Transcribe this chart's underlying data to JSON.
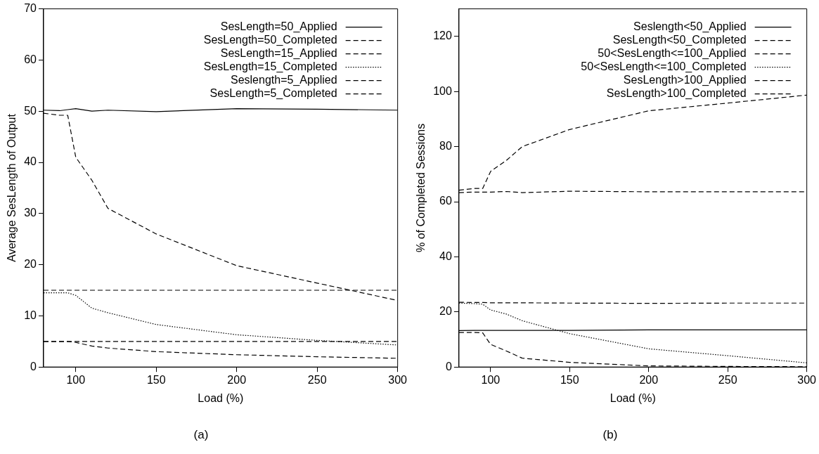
{
  "chart_data": [
    {
      "type": "line",
      "title": "(a)",
      "xlabel": "Load (%)",
      "ylabel": "Average SesLength of Output",
      "x": [
        80,
        90,
        95,
        100,
        110,
        120,
        150,
        200,
        250,
        300
      ],
      "xlim": [
        80,
        300
      ],
      "xticks": [
        100,
        150,
        200,
        250,
        300
      ],
      "ylim": [
        0,
        70
      ],
      "yticks": [
        0,
        10,
        20,
        30,
        40,
        50,
        60,
        70
      ],
      "legend": "top right",
      "grid": false,
      "marker": "none",
      "series": [
        {
          "name": "SesLength=50_Applied",
          "color": "#000000",
          "line_style": "solid",
          "values": [
            50.2,
            50.1,
            50.3,
            50.5,
            50.0,
            50.2,
            49.9,
            50.5,
            50.4,
            50.2
          ]
        },
        {
          "name": "SesLength=50_Completed",
          "color": "#000000",
          "line_style": "dashed",
          "values": [
            49.6,
            49.2,
            49.2,
            41,
            36.5,
            31,
            26,
            19.8,
            16.4,
            13
          ]
        },
        {
          "name": "SesLength=15_Applied",
          "color": "#000000",
          "line_style": "dashed",
          "values": [
            15,
            15,
            15,
            15,
            15,
            15,
            15,
            15,
            15,
            15
          ]
        },
        {
          "name": "SesLength=15_Completed",
          "color": "#000000",
          "line_style": "dotted",
          "values": [
            14.5,
            14.5,
            14.5,
            14,
            11.5,
            10.6,
            8.3,
            6.3,
            5.2,
            4.3
          ]
        },
        {
          "name": "Seslength=5_Applied",
          "color": "#000000",
          "line_style": "dashed",
          "values": [
            5,
            5,
            5,
            5,
            5,
            5,
            5,
            5,
            5,
            5
          ]
        },
        {
          "name": "SesLength=5_Completed",
          "color": "#000000",
          "line_style": "dashed",
          "values": [
            5,
            5,
            5,
            4.8,
            4.1,
            3.7,
            3.0,
            2.4,
            2.0,
            1.7
          ]
        }
      ]
    },
    {
      "type": "line",
      "title": "(b)",
      "xlabel": "Load (%)",
      "ylabel": "% of Completed Sessions",
      "x": [
        80,
        90,
        95,
        100,
        110,
        120,
        150,
        200,
        250,
        300
      ],
      "xlim": [
        80,
        300
      ],
      "xticks": [
        100,
        150,
        200,
        250,
        300
      ],
      "ylim": [
        0,
        130
      ],
      "yticks": [
        0,
        20,
        40,
        60,
        80,
        100,
        120
      ],
      "legend": "top right",
      "grid": false,
      "marker": "none",
      "series": [
        {
          "name": "Seslength<50_Applied",
          "color": "#000000",
          "line_style": "solid",
          "values": [
            13.2,
            13.3,
            13.3,
            13.3,
            13.3,
            13.3,
            13.3,
            13.5,
            13.5,
            13.5
          ]
        },
        {
          "name": "SesLength<50_Completed",
          "color": "#000000",
          "line_style": "dashed",
          "values": [
            12.5,
            12.5,
            12.4,
            8.2,
            5.8,
            3.2,
            1.7,
            0.4,
            0.2,
            0.1
          ]
        },
        {
          "name": "50<SesLength<=100_Applied",
          "color": "#000000",
          "line_style": "dashed",
          "values": [
            23.5,
            23.4,
            23.4,
            23.3,
            23.3,
            23.3,
            23.2,
            23.1,
            23.2,
            23.2
          ]
        },
        {
          "name": "50<SesLength<=100_Completed",
          "color": "#000000",
          "line_style": "dotted",
          "values": [
            23.2,
            23.0,
            22.8,
            20.7,
            19.2,
            16.8,
            12.1,
            6.6,
            4.1,
            1.5
          ]
        },
        {
          "name": "SesLength>100_Applied",
          "color": "#000000",
          "line_style": "dashed",
          "values": [
            63.3,
            63.5,
            63.5,
            63.5,
            63.7,
            63.3,
            63.8,
            63.6,
            63.6,
            63.6
          ]
        },
        {
          "name": "SesLength>100_Completed",
          "color": "#000000",
          "line_style": "dashed",
          "values": [
            64.2,
            64.8,
            64.8,
            71,
            75,
            80,
            86.2,
            93,
            95.8,
            98.7
          ]
        }
      ]
    }
  ]
}
